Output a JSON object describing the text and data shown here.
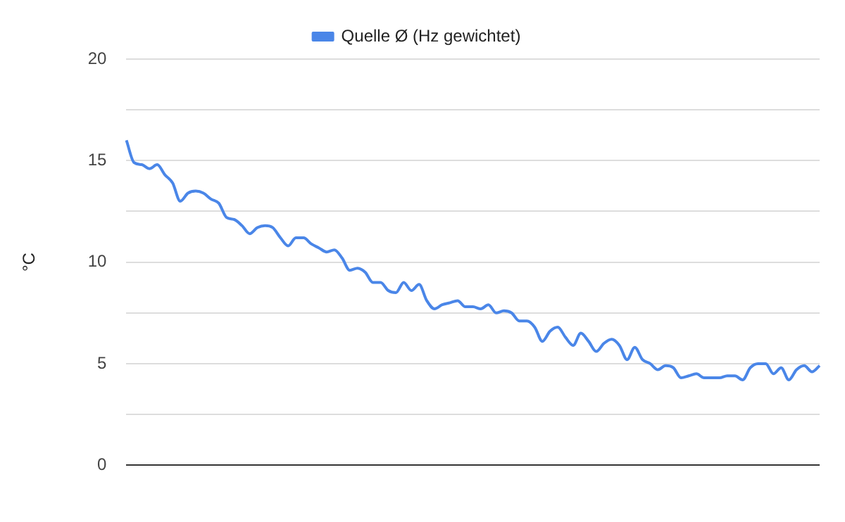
{
  "chart_data": {
    "type": "line",
    "ylabel": "°C",
    "legend": "top",
    "grid": "y",
    "marker": "none",
    "line_style": "solid",
    "ylim": [
      0,
      20
    ],
    "yticks": [
      0,
      {
        "value": 2.5,
        "label": null
      },
      5,
      {
        "value": 7.5,
        "label": null
      },
      10,
      {
        "value": 12.5,
        "label": null
      },
      15,
      {
        "value": 17.5,
        "label": null
      },
      20
    ],
    "categories": [
      null,
      null,
      null,
      null,
      null,
      null,
      null,
      null,
      null,
      null,
      null,
      null,
      null,
      null,
      null,
      null,
      null,
      null,
      null,
      null,
      null,
      null,
      null,
      null,
      null,
      null,
      null,
      null,
      null,
      null,
      null,
      null,
      null,
      null,
      null,
      null,
      null,
      null,
      null,
      null,
      null,
      null,
      null,
      null,
      null,
      null,
      null,
      null,
      null,
      null,
      null,
      null,
      null,
      null,
      null,
      null,
      null,
      null,
      null,
      null,
      null,
      null,
      null,
      null,
      null,
      null,
      null,
      null,
      null,
      null,
      null,
      null,
      null,
      null,
      null,
      null,
      null,
      null,
      null,
      null,
      null,
      null,
      null,
      null,
      null,
      null,
      null,
      null,
      null,
      null,
      null
    ],
    "series": [
      {
        "name": "Quelle Ø (Hz gewichtet)",
        "color": "#4a86e8",
        "values": [
          16.0,
          14.9,
          14.8,
          14.6,
          14.8,
          14.3,
          13.9,
          13.0,
          13.4,
          13.5,
          13.4,
          13.1,
          12.9,
          12.2,
          12.1,
          11.8,
          11.4,
          11.7,
          11.8,
          11.7,
          11.2,
          10.8,
          11.2,
          11.2,
          10.9,
          10.7,
          10.5,
          10.6,
          10.2,
          9.6,
          9.7,
          9.5,
          9.0,
          9.0,
          8.6,
          8.5,
          9.0,
          8.6,
          8.9,
          8.1,
          7.7,
          7.9,
          8.0,
          8.1,
          7.8,
          7.8,
          7.7,
          7.9,
          7.5,
          7.6,
          7.5,
          7.1,
          7.1,
          6.8,
          6.1,
          6.6,
          6.8,
          6.3,
          5.9,
          6.5,
          6.1,
          5.6,
          6.0,
          6.2,
          5.9,
          5.2,
          5.8,
          5.2,
          5.0,
          4.7,
          4.9,
          4.8,
          4.3,
          4.4,
          4.5,
          4.3,
          4.3,
          4.3,
          4.4,
          4.4,
          4.2,
          4.8,
          5.0,
          5.0,
          4.5,
          4.8,
          4.2,
          4.7,
          4.9,
          4.6,
          4.9
        ]
      }
    ]
  }
}
